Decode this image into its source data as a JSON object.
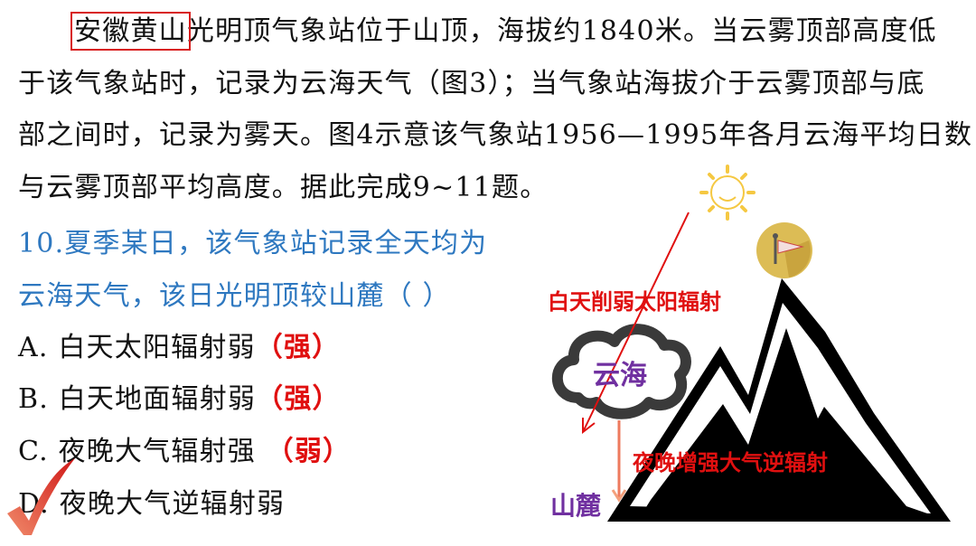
{
  "passage": {
    "highlight": "安徽黄山",
    "line1_rest": "光明顶气象站位于山顶，海拔约1840米。当云雾顶部高度低",
    "line2": "于该气象站时，记录为云海天气（图3）；当气象站海拔介于云雾顶部与底",
    "line3": "部之间时，记录为雾天。图4示意该气象站1956—1995年各月云海平均日数",
    "line4": "与云雾顶部平均高度。据此完成9~11题。"
  },
  "question": {
    "line1": "10.夏季某日，该气象站记录全天均为",
    "line2": "云海天气，该日光明顶较山麓（    ）",
    "options": [
      {
        "text": "A. 白天太阳辐射弱",
        "note": "（强）"
      },
      {
        "text": "B. 白天地面辐射弱",
        "note": "（强）"
      },
      {
        "text": "C. 夜晚大气辐射强",
        "note": " （弱）"
      },
      {
        "text": "D. 夜晚大气逆辐射弱",
        "note": ""
      }
    ],
    "correct": "D"
  },
  "diagram": {
    "label_day": "白天削弱太阳辐射",
    "label_cloud": "云海",
    "label_night": "夜晚增强大气逆辐射",
    "label_foot": "山麓",
    "icons": [
      "sun-icon",
      "weather-station-icon",
      "cloud-icon",
      "mountain-icon",
      "checkmark-icon"
    ],
    "colors": {
      "annotation": "#e01010",
      "purple": "#7030a0",
      "sun": "#f5c842",
      "badge": "#d9b84a"
    }
  }
}
